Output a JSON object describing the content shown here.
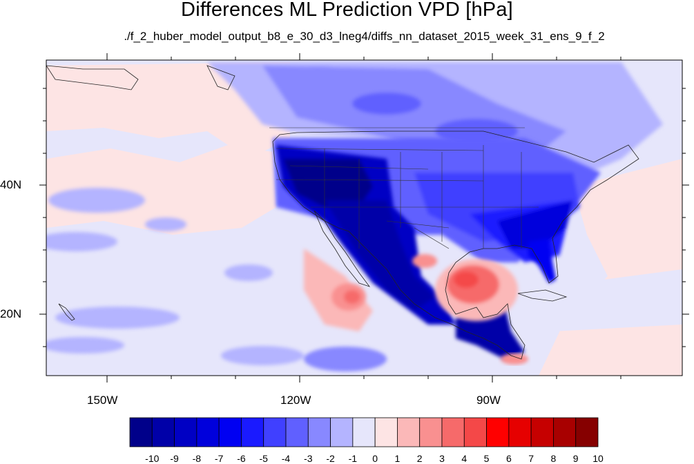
{
  "title": "Differences ML Prediction VPD [hPa]",
  "subtitle": "./f_2_huber_model_output_b8_e_30_d3_lneg4/diffs_nn_dataset_2015_week_31_ens_9_f_2",
  "axes": {
    "lon_labels": [
      "150W",
      "120W",
      "90W"
    ],
    "lat_labels": [
      "40N",
      "20N"
    ],
    "lon_range": [
      -160,
      -60
    ],
    "lat_range": [
      10,
      59
    ]
  },
  "colorbar": {
    "labels": [
      "-10",
      "-9",
      "-8",
      "-7",
      "-6",
      "-5",
      "-4",
      "-3",
      "-2",
      "-1",
      "0",
      "1",
      "2",
      "3",
      "4",
      "5",
      "6",
      "7",
      "8",
      "9",
      "10"
    ],
    "colors": [
      "#00008a",
      "#0000a8",
      "#0000c4",
      "#0000dc",
      "#0000f2",
      "#1a1aff",
      "#4040ff",
      "#6060ff",
      "#8888ff",
      "#b4b4ff",
      "#e6e6fb",
      "#fde4e4",
      "#fbb8b8",
      "#f99090",
      "#f66a6a",
      "#f44848",
      "#ff0000",
      "#e60000",
      "#c60000",
      "#a80000",
      "#860000"
    ]
  },
  "chart_data": {
    "type": "heatmap",
    "title": "Differences ML Prediction VPD [hPa]",
    "subtitle": "./f_2_huber_model_output_b8_e_30_d3_lneg4/diffs_nn_dataset_2015_week_31_ens_9_f_2",
    "variable": "VPD difference",
    "units": "hPa",
    "xlim": [
      -160,
      -60
    ],
    "ylim": [
      10,
      59
    ],
    "x_ticks": [
      "150W",
      "120W",
      "90W"
    ],
    "y_ticks": [
      "40N",
      "20N"
    ],
    "color_levels": [
      -10,
      -9,
      -8,
      -7,
      -6,
      -5,
      -4,
      -3,
      -2,
      -1,
      0,
      1,
      2,
      3,
      4,
      5,
      6,
      7,
      8,
      9,
      10
    ],
    "colormap": "blue-white-red",
    "regions": [
      {
        "region": "Western US / Great Basin",
        "approx_value": -9
      },
      {
        "region": "Mexico Sierra Madre",
        "approx_value": -9
      },
      {
        "region": "Central America",
        "approx_value": -8
      },
      {
        "region": "US Southeast / Florida",
        "approx_value": -6
      },
      {
        "region": "Central / Eastern US",
        "approx_value": -4
      },
      {
        "region": "Canada",
        "approx_value": -3
      },
      {
        "region": "Gulf of Mexico",
        "approx_value": 4
      },
      {
        "region": "Eastern Pacific off Baja California",
        "approx_value": 3
      },
      {
        "region": "Open Pacific",
        "approx_value": -1
      },
      {
        "region": "Atlantic",
        "approx_value": 1
      }
    ]
  }
}
